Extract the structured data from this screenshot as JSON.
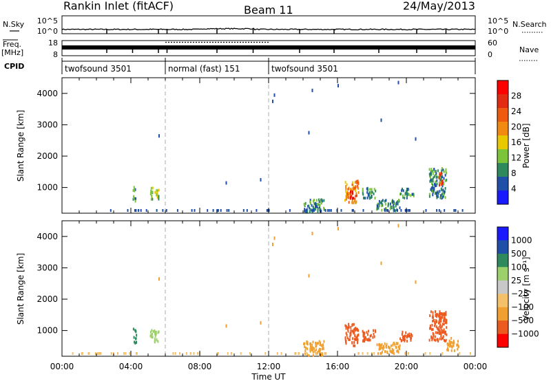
{
  "header": {
    "station": "Rankin Inlet (fitACF)",
    "beam": "Beam 11",
    "date": "24/May/2013"
  },
  "side_labels": {
    "nsky": "N.Sky",
    "nsearch": "N.Search",
    "freq": "Freq.",
    "freq_unit": "[MHz]",
    "nave": "Nave",
    "cpid": "CPID"
  },
  "noise_axis": {
    "left_top": "10^5",
    "left_bottom": "10^0",
    "right_top": "10^5",
    "right_bottom": "10^0"
  },
  "freq_axis": {
    "left_top": "18",
    "left_bottom": "8",
    "right_top": "60",
    "right_bottom": "0"
  },
  "cpid_segments": [
    {
      "label": "twofsound 3501",
      "start_hr": 0,
      "end_hr": 6
    },
    {
      "label": "normal (fast) 151",
      "start_hr": 6,
      "end_hr": 12
    },
    {
      "label": "twofsound 3501",
      "start_hr": 12,
      "end_hr": 24
    }
  ],
  "colors": {
    "power": [
      "#1a1aff",
      "#1f4fa8",
      "#2e8a5c",
      "#7cc43a",
      "#e8c800",
      "#f08a10",
      "#ee5a10",
      "#e32b14",
      "#ff0000"
    ],
    "velocity": [
      "#ff0000",
      "#ec5a20",
      "#f0a030",
      "#f5c06a",
      "#c8c8c8",
      "#9bd06a",
      "#2e8a5c",
      "#1f4fa8",
      "#1a1aff"
    ]
  },
  "chart_data": [
    {
      "type": "heatmap",
      "name": "power-panel",
      "ylabel": "Slant Range [km]",
      "xlabel": "Time UT",
      "xlim": [
        0,
        24
      ],
      "ylim": [
        180,
        4500
      ],
      "y_ticks": [
        "1000",
        "2000",
        "3000",
        "4000"
      ],
      "x_ticks": [
        "00:00",
        "04:00",
        "08:00",
        "12:00",
        "16:00",
        "20:00",
        "00:00"
      ],
      "colorbar": {
        "label": "Power [dB]",
        "ticks": [
          "4",
          "8",
          "12",
          "16",
          "20",
          "24",
          "28"
        ],
        "range": [
          0,
          30
        ]
      },
      "clusters": [
        {
          "t0": 4.1,
          "t1": 4.3,
          "r0": 600,
          "r1": 1100,
          "value": 8
        },
        {
          "t0": 5.1,
          "t1": 5.6,
          "r0": 650,
          "r1": 1050,
          "value": 12
        },
        {
          "t0": 14.0,
          "t1": 15.2,
          "r0": 250,
          "r1": 700,
          "value": 8
        },
        {
          "t0": 16.4,
          "t1": 17.2,
          "r0": 550,
          "r1": 1250,
          "value": 20
        },
        {
          "t0": 16.7,
          "t1": 16.9,
          "r0": 650,
          "r1": 1000,
          "value": 28
        },
        {
          "t0": 17.4,
          "t1": 18.2,
          "r0": 700,
          "r1": 1050,
          "value": 8
        },
        {
          "t0": 18.2,
          "t1": 19.6,
          "r0": 300,
          "r1": 650,
          "value": 8
        },
        {
          "t0": 19.6,
          "t1": 20.4,
          "r0": 700,
          "r1": 1000,
          "value": 8
        },
        {
          "t0": 21.3,
          "t1": 22.3,
          "r0": 700,
          "r1": 1650,
          "value": 8
        },
        {
          "t0": 21.8,
          "t1": 22.1,
          "r0": 1100,
          "r1": 1500,
          "value": 24
        }
      ]
    },
    {
      "type": "heatmap",
      "name": "velocity-panel",
      "ylabel": "Slant Range [km]",
      "xlabel": "Time UT",
      "xlim": [
        0,
        24
      ],
      "ylim": [
        180,
        4500
      ],
      "y_ticks": [
        "1000",
        "2000",
        "3000",
        "4000"
      ],
      "x_ticks": [
        "00:00",
        "04:00",
        "08:00",
        "12:00",
        "16:00",
        "20:00",
        "00:00"
      ],
      "colorbar": {
        "label": "Velocity [m s⁻¹]",
        "ticks": [
          "1000",
          "500",
          "100",
          "25",
          "−25",
          "−100",
          "−500",
          "−1000"
        ]
      },
      "clusters": [
        {
          "t0": 4.1,
          "t1": 4.3,
          "r0": 600,
          "r1": 1100,
          "value": 500
        },
        {
          "t0": 5.1,
          "t1": 5.6,
          "r0": 650,
          "r1": 1050,
          "value": 100
        },
        {
          "t0": 14.0,
          "t1": 15.2,
          "r0": 250,
          "r1": 700,
          "value": -100
        },
        {
          "t0": 16.4,
          "t1": 17.2,
          "r0": 550,
          "r1": 1250,
          "value": -500
        },
        {
          "t0": 17.4,
          "t1": 18.2,
          "r0": 700,
          "r1": 1050,
          "value": -500
        },
        {
          "t0": 18.2,
          "t1": 19.6,
          "r0": 300,
          "r1": 650,
          "value": -100
        },
        {
          "t0": 19.6,
          "t1": 20.4,
          "r0": 700,
          "r1": 1000,
          "value": -500
        },
        {
          "t0": 21.3,
          "t1": 22.3,
          "r0": 700,
          "r1": 1650,
          "value": -500
        },
        {
          "t0": 22.3,
          "t1": 23.0,
          "r0": 400,
          "r1": 800,
          "value": -100
        }
      ]
    }
  ]
}
